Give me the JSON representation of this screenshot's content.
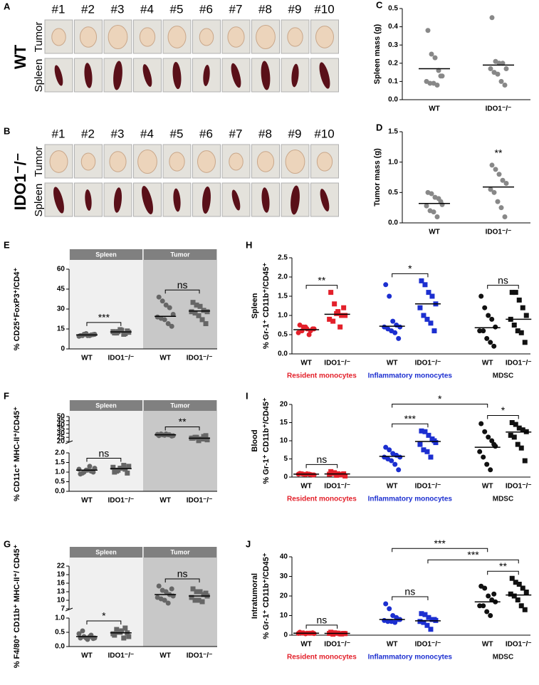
{
  "photo_panels": [
    {
      "panel": "A",
      "genotype": "WT",
      "rows": [
        "Tumor",
        "Spleen"
      ],
      "samples": [
        "#1",
        "#2",
        "#3",
        "#4",
        "#5",
        "#6",
        "#7",
        "#8",
        "#9",
        "#10"
      ]
    },
    {
      "panel": "B",
      "genotype": "IDO1⁻/⁻",
      "rows": [
        "Tumor",
        "Spleen"
      ],
      "samples": [
        "#1",
        "#2",
        "#3",
        "#4",
        "#5",
        "#6",
        "#7",
        "#8",
        "#9",
        "#10"
      ]
    }
  ],
  "chart_data": [
    {
      "type": "dot",
      "panel": "C",
      "ylabel": "Spleen mass (g)",
      "ylim": [
        0,
        0.5
      ],
      "yticks": [
        {
          "value": 0,
          "label": "0.0"
        },
        0.1,
        0.2,
        0.3,
        0.4,
        0.5
      ],
      "markers": [
        "circle",
        "circle"
      ],
      "groups": [
        {
          "color": "#888888",
          "categories": [
            "WT",
            "IDO1⁻/⁻"
          ],
          "points": [
            [
              0.38,
              0.25,
              0.23,
              0.16,
              0.13,
              0.1,
              0.09,
              0.09,
              0.08,
              0.13
            ],
            [
              0.45,
              0.21,
              0.2,
              0.2,
              0.17,
              0.17,
              0.15,
              0.14,
              0.1,
              0.08
            ]
          ],
          "medians": [
            0.17,
            0.19
          ]
        }
      ],
      "annotations": []
    },
    {
      "type": "dot",
      "panel": "D",
      "ylabel": "Tumor mass (g)",
      "ylim": [
        0,
        1.5
      ],
      "yticks": [
        {
          "value": 0,
          "label": "0.0"
        },
        0.5,
        {
          "value": 1,
          "label": "1.0"
        },
        1.5
      ],
      "markers": [
        "circle",
        "circle"
      ],
      "groups": [
        {
          "color": "#888888",
          "categories": [
            "WT",
            "IDO1⁻/⁻"
          ],
          "points": [
            [
              0.5,
              0.48,
              0.42,
              0.4,
              0.3,
              0.28,
              0.2,
              0.18,
              0.1,
              0.35
            ],
            [
              0.95,
              0.88,
              0.8,
              0.7,
              0.65,
              0.55,
              0.5,
              0.35,
              0.25,
              0.1
            ]
          ],
          "medians": [
            0.32,
            0.59
          ]
        }
      ],
      "annotations": [
        {
          "text": "**",
          "from": [
            0,
            1
          ],
          "to": [
            0,
            1
          ]
        }
      ]
    },
    {
      "type": "dot",
      "panel": "E",
      "ylabel": "% CD25⁺FoxP3⁺/CD4⁺",
      "ylim": [
        0,
        60
      ],
      "yticks": [
        0,
        15,
        30,
        45,
        60
      ],
      "markers": [
        "circle",
        "square"
      ],
      "groups": [
        {
          "header": "Spleen",
          "color": "#666666",
          "categories": [
            "WT",
            "IDO1⁻/⁻"
          ],
          "points": [
            [
              10,
              11,
              10,
              10.5,
              11,
              9.5,
              10,
              11.5,
              10,
              10.8
            ],
            [
              12,
              13,
              14,
              11.5,
              12.5,
              13,
              12,
              14.5,
              11,
              13.5
            ]
          ],
          "medians": [
            10.5,
            12.8
          ]
        },
        {
          "header": "Tumor",
          "color": "#666666",
          "categories": [
            "WT",
            "IDO1⁻/⁻"
          ],
          "points": [
            [
              39,
              36,
              33,
              31,
              26,
              24,
              23,
              22,
              19,
              17
            ],
            [
              35,
              33,
              32,
              29,
              28,
              28,
              27,
              25,
              22,
              19
            ]
          ],
          "medians": [
            24.5,
            28.5
          ]
        }
      ],
      "annotations": [
        {
          "text": "***",
          "from": [
            0,
            0
          ],
          "to": [
            0,
            1
          ]
        },
        {
          "text": "ns",
          "from": [
            1,
            0
          ],
          "to": [
            1,
            1
          ]
        }
      ]
    },
    {
      "type": "dot",
      "panel": "F",
      "ylabel": "% CD11c⁺ MHC-II⁺/CD45⁺",
      "y_segments": [
        {
          "ylim": [
            0,
            2
          ],
          "yticks": [
            {
              "value": 0,
              "label": "0.0"
            },
            0.5,
            {
              "value": 1,
              "label": "1.0"
            },
            1.5,
            {
              "value": 2,
              "label": "2.0"
            }
          ]
        },
        {
          "ylim": [
            20,
            50
          ],
          "yticks": [
            20,
            25,
            30,
            35,
            40,
            45,
            50
          ]
        }
      ],
      "markers": [
        "circle",
        "square"
      ],
      "groups": [
        {
          "header": "Spleen",
          "color": "#666666",
          "categories": [
            "WT",
            "IDO1⁻/⁻"
          ],
          "points": [
            [
              0.9,
              1.0,
              1.1,
              1.05,
              1.2,
              1.15,
              0.95,
              1.1,
              1.3,
              1.0
            ],
            [
              1.0,
              1.1,
              1.2,
              1.15,
              1.3,
              1.25,
              1.05,
              1.2,
              1.35,
              0.95
            ]
          ],
          "medians": [
            1.1,
            1.18
          ]
        },
        {
          "header": "Tumor",
          "color": "#666666",
          "categories": [
            "WT",
            "IDO1⁻/⁻"
          ],
          "points": [
            [
              27,
              28,
              29,
              28,
              27,
              28.5,
              29,
              27.5,
              28,
              26.5
            ],
            [
              24,
              25,
              23,
              26,
              22,
              24,
              25,
              21,
              23,
              27
            ]
          ],
          "medians": [
            28,
            24
          ]
        }
      ],
      "annotations": [
        {
          "text": "ns",
          "from": [
            0,
            0
          ],
          "to": [
            0,
            1
          ]
        },
        {
          "text": "**",
          "from": [
            1,
            0
          ],
          "to": [
            1,
            1
          ]
        }
      ]
    },
    {
      "type": "dot",
      "panel": "G",
      "ylabel": "% F4/80⁺ CD11b⁺ MHC-II⁺/ CD45⁺",
      "y_segments": [
        {
          "ylim": [
            0,
            1
          ],
          "yticks": [
            {
              "value": 0,
              "label": "0.0"
            },
            0.5,
            {
              "value": 1,
              "label": "1.0"
            }
          ]
        },
        {
          "ylim": [
            7,
            22
          ],
          "yticks": [
            7,
            10,
            13,
            16,
            19,
            22
          ]
        }
      ],
      "markers": [
        "circle",
        "square"
      ],
      "groups": [
        {
          "header": "Spleen",
          "color": "#666666",
          "categories": [
            "WT",
            "IDO1⁻/⁻"
          ],
          "points": [
            [
              0.3,
              0.35,
              0.25,
              0.4,
              0.3,
              0.45,
              0.55,
              0.3,
              0.35,
              0.28
            ],
            [
              0.4,
              0.5,
              0.55,
              0.65,
              0.35,
              0.45,
              0.6,
              0.5,
              0.3,
              0.48
            ]
          ],
          "medians": [
            0.35,
            0.48
          ]
        },
        {
          "header": "Tumor",
          "color": "#666666",
          "categories": [
            "WT",
            "IDO1⁻/⁻"
          ],
          "points": [
            [
              15,
              13.5,
              13,
              12,
              11.5,
              11,
              10.5,
              10,
              9,
              14
            ],
            [
              14,
              13,
              13,
              12,
              11.5,
              11,
              10,
              10,
              9.5,
              12.5
            ]
          ],
          "medians": [
            12,
            11.5
          ]
        }
      ],
      "annotations": [
        {
          "text": "*",
          "from": [
            0,
            0
          ],
          "to": [
            0,
            1
          ]
        },
        {
          "text": "ns",
          "from": [
            1,
            0
          ],
          "to": [
            1,
            1
          ]
        }
      ]
    },
    {
      "type": "dot",
      "panel": "H",
      "ylabel": [
        "Spleen",
        "% Gr-1⁺ CD11b⁺/CD45⁺"
      ],
      "ylim": [
        0,
        2.5
      ],
      "yticks": [
        {
          "value": 0,
          "label": "0.0"
        },
        0.5,
        {
          "value": 1,
          "label": "1.0"
        },
        1.5,
        {
          "value": 2,
          "label": "2.0"
        },
        2.5
      ],
      "markers": [
        "circle",
        "square"
      ],
      "groups": [
        {
          "label": "Resident monocytes",
          "color": "#e3202a",
          "categories": [
            "WT",
            "IDO1⁻/⁻"
          ],
          "points": [
            [
              0.75,
              0.7,
              0.65,
              0.6,
              0.65,
              0.55,
              0.6,
              0.7,
              0.5,
              0.65
            ],
            [
              1.6,
              1.3,
              1.1,
              1.0,
              1.0,
              0.9,
              0.85,
              1.05,
              0.7,
              1.2
            ]
          ],
          "medians": [
            0.63,
            1.03
          ]
        },
        {
          "label": "Inflammatory monocytes",
          "color": "#1c2fd0",
          "categories": [
            "WT",
            "IDO1⁻/⁻"
          ],
          "points": [
            [
              1.8,
              1.5,
              0.85,
              0.75,
              0.7,
              0.7,
              0.65,
              0.6,
              0.55,
              0.4
            ],
            [
              1.9,
              1.8,
              1.6,
              1.5,
              1.3,
              1.2,
              1.0,
              0.9,
              0.8,
              0.6
            ]
          ],
          "medians": [
            0.72,
            1.3
          ]
        },
        {
          "label": "MDSC",
          "color": "#111111",
          "categories": [
            "WT",
            "IDO1⁻/⁻"
          ],
          "points": [
            [
              1.5,
              1.2,
              1.0,
              0.9,
              0.7,
              0.6,
              0.6,
              0.4,
              0.3,
              0.2
            ],
            [
              1.6,
              1.6,
              1.4,
              1.2,
              1.0,
              0.9,
              0.75,
              0.6,
              0.55,
              0.3
            ]
          ],
          "medians": [
            0.68,
            0.9
          ]
        }
      ],
      "annotations": [
        {
          "text": "**",
          "from": [
            0,
            0
          ],
          "to": [
            0,
            1
          ]
        },
        {
          "text": "*",
          "from": [
            1,
            0
          ],
          "to": [
            1,
            1
          ]
        },
        {
          "text": "ns",
          "from": [
            2,
            0
          ],
          "to": [
            2,
            1
          ]
        }
      ]
    },
    {
      "type": "dot",
      "panel": "I",
      "ylabel": [
        "Blood",
        "% Gr-1⁺ CD11b⁺/CD45⁺"
      ],
      "ylim": [
        0,
        20
      ],
      "yticks": [
        0,
        5,
        10,
        15,
        20
      ],
      "markers": [
        "circle",
        "square"
      ],
      "groups": [
        {
          "label": "Resident monocytes",
          "color": "#e3202a",
          "categories": [
            "WT",
            "IDO1⁻/⁻"
          ],
          "points": [
            [
              1.0,
              0.8,
              0.9,
              0.7,
              0.6,
              0.8,
              0.9,
              0.7,
              0.8,
              0.6
            ],
            [
              1.5,
              1.2,
              0.9,
              0.6,
              0.3,
              0.8,
              1.0,
              0.5,
              0.7,
              0.9
            ]
          ],
          "medians": [
            0.8,
            0.85
          ]
        },
        {
          "label": "Inflammatory monocytes",
          "color": "#1c2fd0",
          "categories": [
            "WT",
            "IDO1⁻/⁻"
          ],
          "points": [
            [
              8.2,
              7.5,
              6.5,
              6.0,
              5.5,
              5.5,
              5.0,
              4.5,
              3.5,
              2.0
            ],
            [
              12.7,
              12.5,
              11.5,
              10.5,
              9.5,
              9.0,
              7.5,
              7.0,
              5.5,
              10.0
            ]
          ],
          "medians": [
            5.7,
            9.8
          ]
        },
        {
          "label": "MDSC",
          "color": "#111111",
          "categories": [
            "WT",
            "IDO1⁻/⁻"
          ],
          "points": [
            [
              14.7,
              12.5,
              11.0,
              10.0,
              8.5,
              7.0,
              5.5,
              3.5,
              2.0,
              9.0
            ],
            [
              15.0,
              14.5,
              13.5,
              13.0,
              12.5,
              11.5,
              11.0,
              9.0,
              8.0,
              4.5
            ]
          ],
          "medians": [
            8.2,
            12.4
          ]
        }
      ],
      "annotations": [
        {
          "text": "ns",
          "from": [
            0,
            0
          ],
          "to": [
            0,
            1
          ]
        },
        {
          "text": "***",
          "from": [
            1,
            0
          ],
          "to": [
            1,
            1
          ]
        },
        {
          "text": "*",
          "from": [
            2,
            0
          ],
          "to": [
            2,
            1
          ]
        },
        {
          "text": "*",
          "from": [
            1,
            0
          ],
          "to": [
            2,
            0
          ]
        }
      ]
    },
    {
      "type": "dot",
      "panel": "J",
      "ylabel": [
        "Intratumoral",
        "% Gr-1⁺ CD11b⁺/CD45⁺"
      ],
      "ylim": [
        0,
        40
      ],
      "yticks": [
        0,
        10,
        20,
        30,
        40
      ],
      "markers": [
        "circle",
        "square"
      ],
      "groups": [
        {
          "label": "Resident monocytes",
          "color": "#e3202a",
          "categories": [
            "WT",
            "IDO1⁻/⁻"
          ],
          "points": [
            [
              1.5,
              1.2,
              1.0,
              1.0,
              0.8,
              0.9,
              1.1,
              0.7,
              1.0,
              1.2
            ],
            [
              1.5,
              1.2,
              1.0,
              0.6,
              0.8,
              0.9,
              0.5,
              1.0,
              0.7,
              0.9
            ]
          ],
          "medians": [
            1.0,
            0.9
          ]
        },
        {
          "label": "Inflammatory monocytes",
          "color": "#1c2fd0",
          "categories": [
            "WT",
            "IDO1⁻/⁻"
          ],
          "points": [
            [
              16,
              13.5,
              10,
              9,
              8,
              7.5,
              7,
              7,
              6.5,
              8
            ],
            [
              11,
              10.5,
              9,
              8,
              7.5,
              7,
              6.5,
              5,
              3,
              8
            ]
          ],
          "medians": [
            8,
            7.3
          ]
        },
        {
          "label": "MDSC",
          "color": "#111111",
          "categories": [
            "WT",
            "IDO1⁻/⁻"
          ],
          "points": [
            [
              25,
              24,
              20,
              18,
              17,
              15,
              15,
              12,
              10,
              21
            ],
            [
              29,
              27,
              26,
              24,
              22,
              21,
              20,
              18,
              15,
              13
            ]
          ],
          "medians": [
            17,
            20.5
          ]
        }
      ],
      "annotations": [
        {
          "text": "ns",
          "from": [
            0,
            0
          ],
          "to": [
            0,
            1
          ]
        },
        {
          "text": "ns",
          "from": [
            1,
            0
          ],
          "to": [
            1,
            1
          ]
        },
        {
          "text": "**",
          "from": [
            2,
            0
          ],
          "to": [
            2,
            1
          ]
        },
        {
          "text": "***",
          "from": [
            1,
            1
          ],
          "to": [
            2,
            1
          ]
        },
        {
          "text": "***",
          "from": [
            1,
            0
          ],
          "to": [
            2,
            0
          ]
        }
      ]
    }
  ]
}
